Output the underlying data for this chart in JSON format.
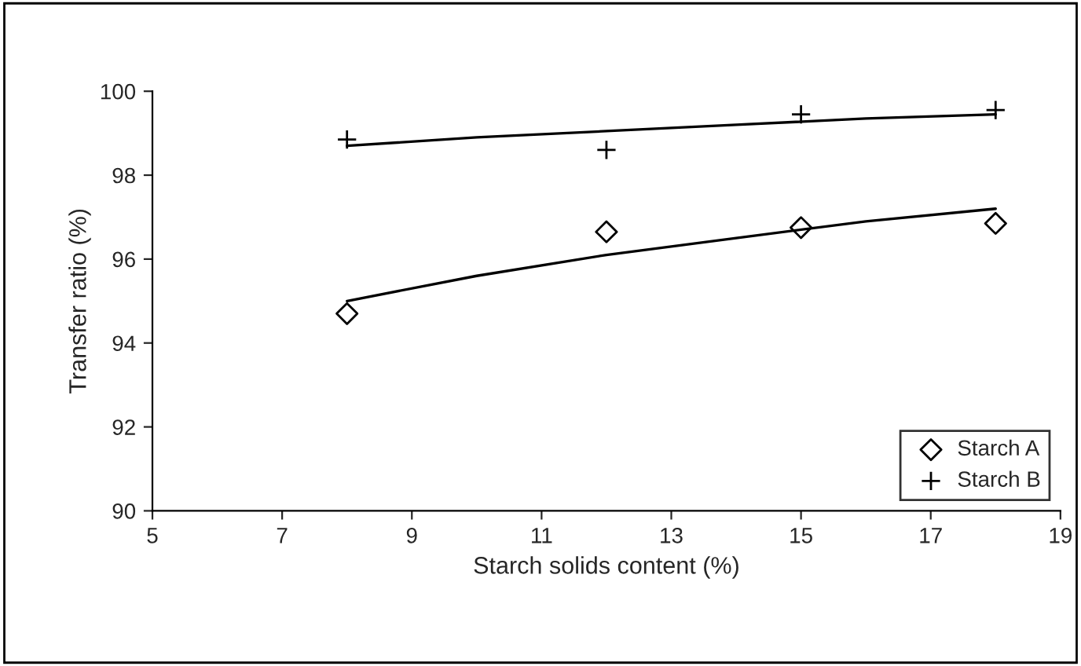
{
  "chart_data": {
    "type": "scatter",
    "xlabel": "Starch solids content (%)",
    "ylabel": "Transfer ratio (%)",
    "xlim": [
      5,
      19
    ],
    "xticks": [
      5,
      7,
      9,
      11,
      13,
      15,
      17,
      19
    ],
    "ylim": [
      90,
      100
    ],
    "yticks": [
      90,
      92,
      94,
      96,
      98,
      100
    ],
    "grid": false,
    "legend": "bottom right",
    "series": [
      {
        "name": "Starch A",
        "color": "#000000",
        "marker": "diamond",
        "x": [
          8,
          12,
          15,
          18
        ],
        "values": [
          94.7,
          96.65,
          96.75,
          96.85
        ]
      },
      {
        "name": "Starch B",
        "color": "#000000",
        "marker": "cross",
        "x": [
          8,
          12,
          15,
          18
        ],
        "values": [
          98.85,
          98.6,
          99.45,
          99.55
        ]
      },
      {
        "type": "line",
        "color": "#000000",
        "marker": "none",
        "line_style": "solid",
        "x": [
          8,
          10,
          12,
          14,
          16,
          18
        ],
        "values": [
          95.0,
          95.6,
          96.1,
          96.5,
          96.9,
          97.2
        ]
      },
      {
        "type": "line",
        "color": "#000000",
        "marker": "none",
        "line_style": "solid",
        "x": [
          8,
          10,
          12,
          14,
          16,
          18
        ],
        "values": [
          98.7,
          98.9,
          99.05,
          99.2,
          99.35,
          99.45
        ]
      }
    ]
  }
}
